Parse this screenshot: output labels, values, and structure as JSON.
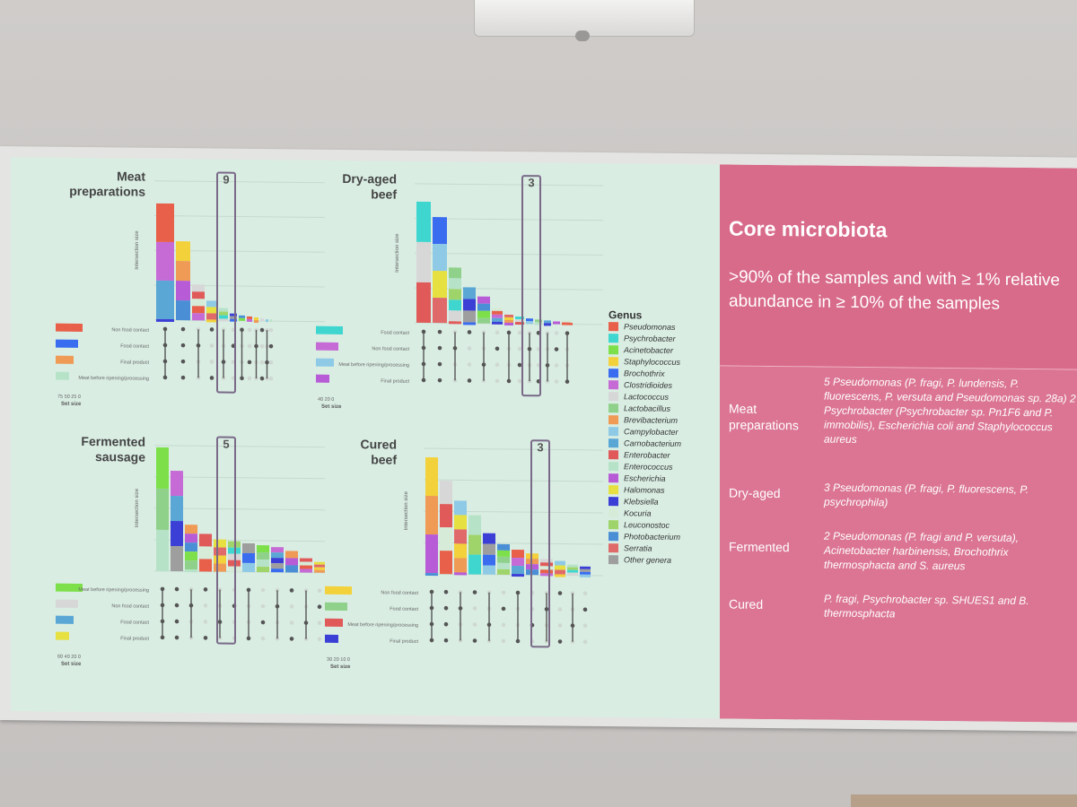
{
  "slide": {
    "title": "Core microbiota",
    "subtitle": ">90% of the samples and with ≥ 1% relative abundance in ≥ 10% of the samples",
    "rows": [
      {
        "category": "Meat preparations",
        "description": "5 Pseudomonas (P. fragi, P. lundensis, P. fluorescens, P. versuta and Pseudomonas sp. 28a) 2 Psychrobacter (Psychrobacter sp. Pn1F6 and P. immobilis), Escherichia coli and Staphylococcus aureus"
      },
      {
        "category": "Dry-aged",
        "description": "3 Pseudomonas (P. fragi, P. fluorescens, P. psychrophila)"
      },
      {
        "category": "Fermented",
        "description": "2 Pseudomonas (P. fragi and P. versuta), Acinetobacter harbinensis, Brochothrix thermosphacta and S. aureus"
      },
      {
        "category": "Cured",
        "description": "P. fragi, Psychrobacter sp. SHUES1 and B. thermosphacta"
      }
    ]
  },
  "panels": [
    {
      "title": "Meat preparations",
      "highlight": "9",
      "set_labels": [
        "Non food contact",
        "Food contact",
        "Final product",
        "Meat before ripening/processing"
      ],
      "set_axis": "75 50 25 0"
    },
    {
      "title": "Dry-aged beef",
      "highlight": "3",
      "set_labels": [
        "Food contact",
        "Non food contact",
        "Meat before ripening/processing",
        "Final product"
      ],
      "set_axis": "40 20 0"
    },
    {
      "title": "Fermented sausage",
      "highlight": "5",
      "set_labels": [
        "Meat before ripening/processing",
        "Non food contact",
        "Food contact",
        "Final product"
      ],
      "set_axis": "60 40 20 0"
    },
    {
      "title": "Cured beef",
      "highlight": "3",
      "set_labels": [
        "Non food contact",
        "Food contact",
        "Meat before ripening/processing",
        "Final product"
      ],
      "set_axis": "30 20 10 0"
    }
  ],
  "axis": {
    "y_label": "Intersection size",
    "set_size_label": "Set size"
  },
  "legend": {
    "title": "Genus",
    "items": [
      {
        "name": "Pseudomonas",
        "color": "#e8604a"
      },
      {
        "name": "Psychrobacter",
        "color": "#3fd6d0"
      },
      {
        "name": "Acinetobacter",
        "color": "#7de04a"
      },
      {
        "name": "Staphylococcus",
        "color": "#f2d13a"
      },
      {
        "name": "Brochothrix",
        "color": "#3a6cf0"
      },
      {
        "name": "Clostridioides",
        "color": "#c66bd6"
      },
      {
        "name": "Lactococcus",
        "color": "#d7d7d7"
      },
      {
        "name": "Lactobacillus",
        "color": "#8fd18a"
      },
      {
        "name": "Brevibacterium",
        "color": "#ef9a55"
      },
      {
        "name": "Campylobacter",
        "color": "#8ecae6"
      },
      {
        "name": "Carnobacterium",
        "color": "#5aa7d6"
      },
      {
        "name": "Enterobacter",
        "color": "#e05a5a"
      },
      {
        "name": "Enterococcus",
        "color": "#b6e3c8"
      },
      {
        "name": "Escherichia",
        "color": "#b75bd6"
      },
      {
        "name": "Halomonas",
        "color": "#e6e040"
      },
      {
        "name": "Klebsiella",
        "color": "#3b3fd6"
      },
      {
        "name": "Kocuria",
        "color": "#d6ecd9"
      },
      {
        "name": "Leuconostoc",
        "color": "#9fd46a"
      },
      {
        "name": "Photobacterium",
        "color": "#4a8fd6"
      },
      {
        "name": "Serratia",
        "color": "#e06a6a"
      },
      {
        "name": "Other genera",
        "color": "#9e9e9e"
      }
    ]
  }
}
